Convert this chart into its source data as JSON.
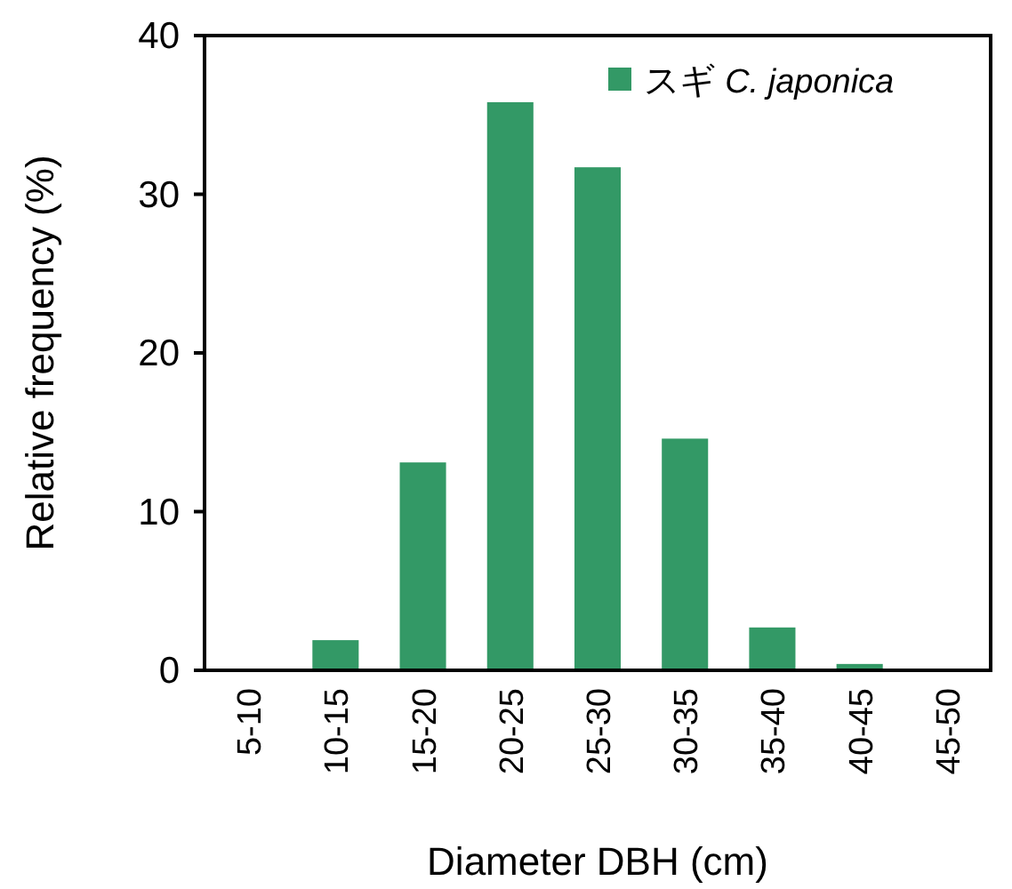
{
  "chart_data": {
    "type": "bar",
    "xlabel": "Diameter  DBH  (cm)",
    "ylabel": "Relative frequency   (%)",
    "categories": [
      "5-10",
      "10-15",
      "15-20",
      "20-25",
      "25-30",
      "30-35",
      "35-40",
      "40-45",
      "45-50"
    ],
    "series": [
      {
        "name": "スギ C. japonica",
        "color": "#339966",
        "values": [
          0,
          1.9,
          13.1,
          35.8,
          31.7,
          14.6,
          2.7,
          0.4,
          0
        ]
      }
    ],
    "ylim": [
      0,
      40
    ],
    "yticks": [
      0,
      10,
      20,
      30,
      40
    ],
    "legend": "top right",
    "grid": false
  }
}
